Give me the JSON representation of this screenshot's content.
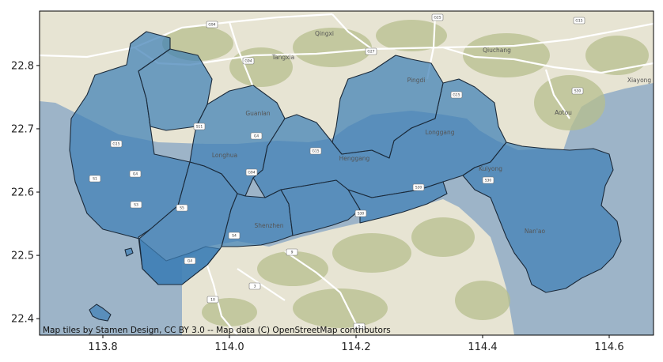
{
  "map": {
    "attribution": "Map tiles by Stamen Design, CC BY 3.0 -- Map data (C) OpenStreetMap contributors",
    "colors": {
      "sea": "#9db4c8",
      "land": "#e7e4d3",
      "hill": "#b7bf8e",
      "district_fill": "#3f7fb5",
      "district_edge": "#1b2a3a",
      "road": "#ffffff",
      "frame": "#000000"
    },
    "place_labels": [
      "Qingxi",
      "Tangxia",
      "Qiuchang",
      "Xiayong",
      "Guanlan",
      "Pingdi",
      "Aotou",
      "Longhua",
      "Henggang",
      "Longgang",
      "Kuiyong",
      "Shenzhen",
      "Nan'ao"
    ],
    "road_shields": [
      "G94",
      "G25",
      "G15",
      "G94",
      "G27",
      "S30",
      "G15",
      "S11",
      "G15",
      "S3",
      "S1",
      "G4",
      "S30",
      "G15",
      "S30",
      "G4",
      "G94",
      "S4",
      "S30",
      "S5",
      "9",
      "S",
      "10",
      "3",
      "G4"
    ],
    "boundary_style": "district outlines",
    "tile_style": "terrain"
  },
  "chart_data": {
    "type": "map",
    "xticks": [
      113.8,
      114.0,
      114.2,
      114.4,
      114.6
    ],
    "xtick_labels": [
      "113.8",
      "114.0",
      "114.2",
      "114.4",
      "114.6"
    ],
    "yticks": [
      22.4,
      22.5,
      22.6,
      22.7,
      22.8
    ],
    "ytick_labels": [
      "22.4",
      "22.5",
      "22.6",
      "22.7",
      "22.8"
    ],
    "xlim": [
      113.7,
      114.67
    ],
    "ylim": [
      22.374,
      22.886
    ],
    "grid": false,
    "legend": "none",
    "layer": "district polygons over basemap tiles"
  }
}
